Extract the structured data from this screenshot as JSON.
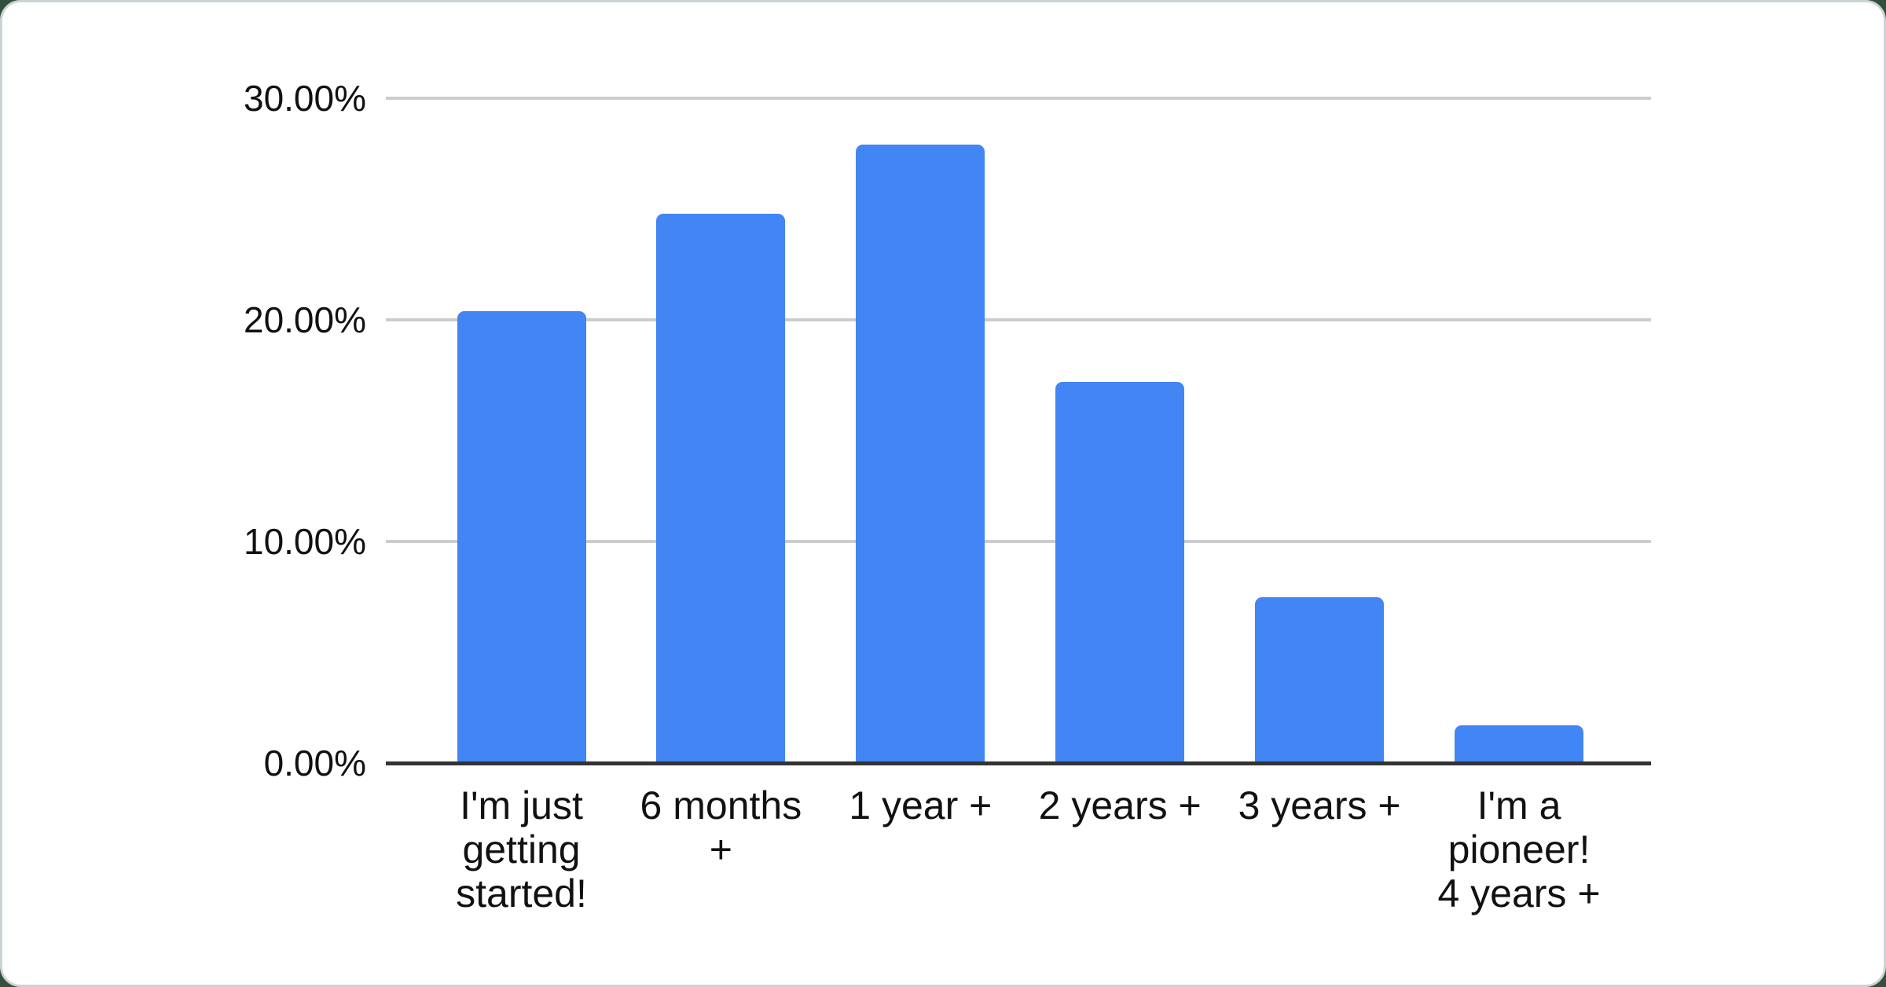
{
  "chart_data": {
    "type": "bar",
    "title": "",
    "xlabel": "",
    "ylabel": "",
    "legend_position": "none",
    "grid": true,
    "ylim": [
      0,
      30
    ],
    "categories": [
      "I'm just getting started!",
      "6 months +",
      "1 year +",
      "2 years +",
      "3 years +",
      "I'm a pioneer! 4 years +"
    ],
    "x_tick_display": [
      "I'm just\ngetting\nstarted!",
      "6 months\n+",
      "1 year +",
      "2 years +",
      "3 years +",
      "I'm a\npioneer!\n4 years +"
    ],
    "values": [
      20.4,
      24.8,
      27.9,
      17.2,
      7.5,
      1.7
    ],
    "y_ticks": {
      "labels": [
        "30.00%",
        "20.00%",
        "10.00%",
        "0.00%"
      ],
      "values": [
        30,
        20,
        10,
        0
      ]
    }
  },
  "colors": {
    "bar": "#4285f4",
    "gridline": "#cccccc",
    "axis_line": "#333333",
    "label_text": "#111111",
    "card_background": "#ffffff",
    "card_border": "#ccd3d6",
    "page_background": "#33503f"
  }
}
